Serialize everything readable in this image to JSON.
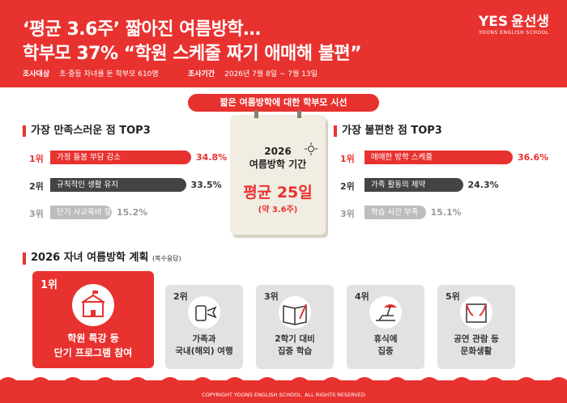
{
  "header": {
    "title_lines": [
      "‘평균 3.6주’ 짧아진 여름방학…",
      "학부모 37% “학원 스케줄 짜기 애매해 불편”"
    ],
    "survey_target_label": "조사대상",
    "survey_target": "초·중등 자녀를 둔 학부모 610명",
    "survey_period_label": "조사기간",
    "survey_period": "2026년 7월 8일 ~ 7월 13일",
    "logo": "윤선생",
    "logo_mark": "YES",
    "logo_sub": "YOONS ENGLISH SCHOOL"
  },
  "banner": "짧은 여름방학에 대한 학부모 시선",
  "satisfied": {
    "heading": "가장 만족스러운 점 TOP3",
    "items": [
      {
        "rank": "1위",
        "label": "가정 돌봄 부담 감소",
        "value": 34.8,
        "value_label": "34.8%"
      },
      {
        "rank": "2위",
        "label": "규칙적인 생활 유지",
        "value": 33.5,
        "value_label": "33.5%"
      },
      {
        "rank": "3위",
        "label": "단기 사교육비 절감",
        "value": 15.2,
        "value_label": "15.2%"
      }
    ]
  },
  "calendar": {
    "lines": [
      "2026",
      "여름방학 기간"
    ],
    "average": "평균 25일",
    "weeks": "(약 3.6주)"
  },
  "inconvenient": {
    "heading": "가장 불편한 점 TOP3",
    "items": [
      {
        "rank": "1위",
        "label": "애매한 방학 스케줄",
        "value": 36.6,
        "value_label": "36.6%"
      },
      {
        "rank": "2위",
        "label": "가족 활동의 제약",
        "value": 24.3,
        "value_label": "24.3%"
      },
      {
        "rank": "3위",
        "label": "학습 시간 부족",
        "value": 15.1,
        "value_label": "15.1%"
      }
    ]
  },
  "plans": {
    "heading": "2026 자녀 여름방학 계획",
    "note": "(복수응답)",
    "items": [
      {
        "rank": "1위",
        "lines": [
          "학원 특강 등",
          "단기 프로그램 참여"
        ]
      },
      {
        "rank": "2위",
        "lines": [
          "가족과",
          "국내(해외) 여행"
        ]
      },
      {
        "rank": "3위",
        "lines": [
          "2학기 대비",
          "집중 학습"
        ]
      },
      {
        "rank": "4위",
        "lines": [
          "휴식에",
          "집중"
        ]
      },
      {
        "rank": "5위",
        "lines": [
          "공연 관람 등",
          "문화생활"
        ]
      }
    ]
  },
  "footer": "COPYRIGHT YOONS ENGLISH SCHOOL. ALL RIGHTS RESERVED"
}
